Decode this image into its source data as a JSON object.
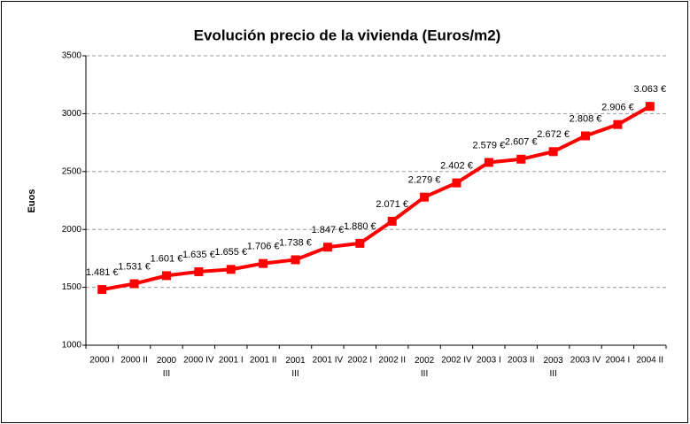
{
  "chart_data": {
    "type": "line",
    "title": "Evolución precio de la vivienda (Euros/m2)",
    "y_label": "Euos",
    "categories": [
      "2000 I",
      "2000 II",
      "2000 III",
      "2000 IV",
      "2001 I",
      "2001 II",
      "2001 III",
      "2001 IV",
      "2002 I",
      "2002 II",
      "2002 III",
      "2002 IV",
      "2003 I",
      "2003 II",
      "2003 III",
      "2003 IV",
      "2004 I",
      "2004 II"
    ],
    "values": [
      1481,
      1531,
      1601,
      1635,
      1655,
      1706,
      1738,
      1847,
      1880,
      2071,
      2279,
      2402,
      2579,
      2607,
      2672,
      2808,
      2906,
      3063
    ],
    "value_labels": [
      "1.481 €",
      "1.531 €",
      "1.601 €",
      "1.635 €",
      "1.655 €",
      "1.706 €",
      "1.738 €",
      "1.847 €",
      "1.880 €",
      "2.071 €",
      "2.279 €",
      "2.402 €",
      "2.579 €",
      "2.607 €",
      "2.672 €",
      "2.808 €",
      "2.906 €",
      "3.063 €"
    ],
    "color": "#ff0000",
    "ylim": [
      1000,
      3500
    ],
    "yticks": [
      1000,
      1500,
      2000,
      2500,
      3000,
      3500
    ],
    "grid": true
  }
}
